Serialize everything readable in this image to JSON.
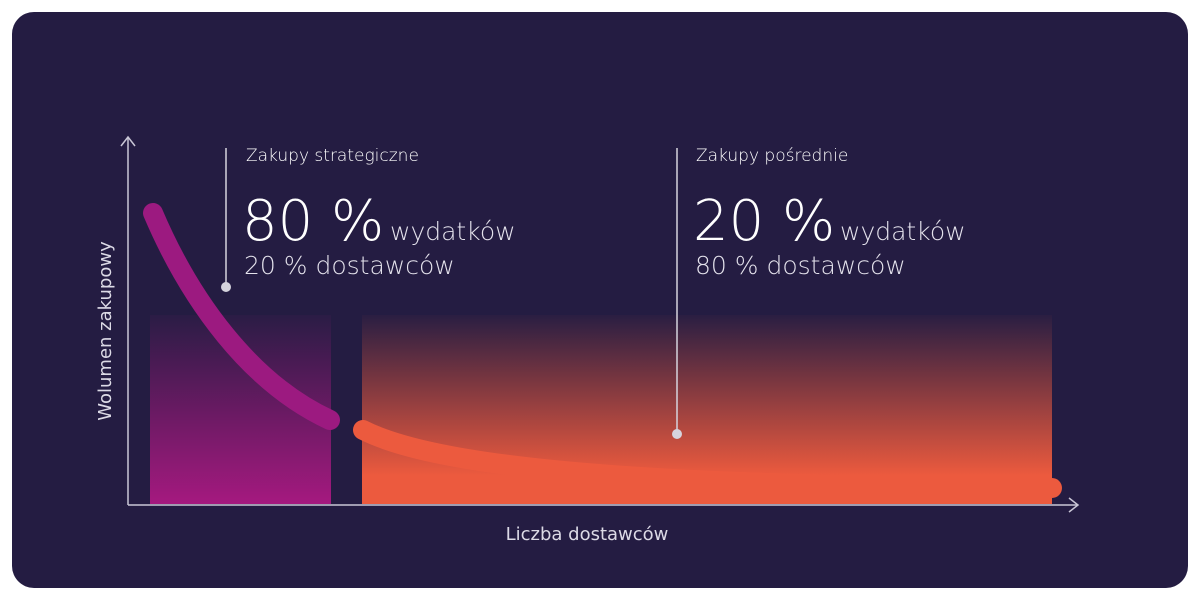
{
  "colors": {
    "background": "#241c42",
    "strategic": "#a5197f",
    "indirect": "#ec5a3e",
    "axis": "#c9c6d6"
  },
  "axes": {
    "y_label": "Wolumen zakupowy",
    "x_label": "Liczba dostawców"
  },
  "segments": [
    {
      "title": "Zakupy strategiczne",
      "big_value": "80 %",
      "big_unit": "wydatków",
      "sub": "20 % dostawców"
    },
    {
      "title": "Zakupy pośrednie",
      "big_value": "20 %",
      "big_unit": "wydatków",
      "sub": "80 % dostawców"
    }
  ]
}
